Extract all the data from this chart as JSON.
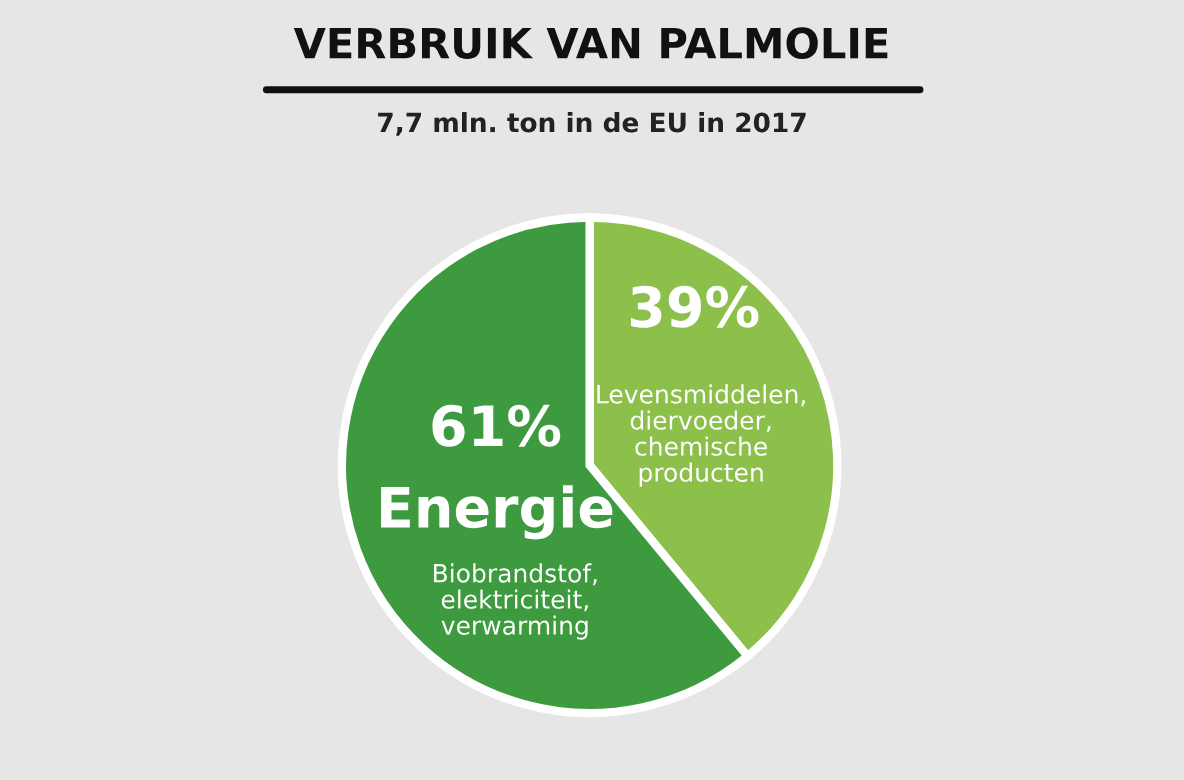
{
  "chart_data": {
    "type": "pie",
    "title": "VERBRUIK VAN PALMOLIE",
    "subtitle": "7,7 mln. ton in de EU in 2017",
    "categories": [
      "Levensmiddelen,\ndiervoeder,\nchemische\nproducten",
      "Energie"
    ],
    "values": [
      39,
      61
    ],
    "value_labels": [
      "39%",
      "61%"
    ],
    "colors": [
      "#8cc04b",
      "#3d9a3e"
    ],
    "annotations": [
      "Biobrandstof,\nelektriciteit,\nverwarming"
    ]
  }
}
